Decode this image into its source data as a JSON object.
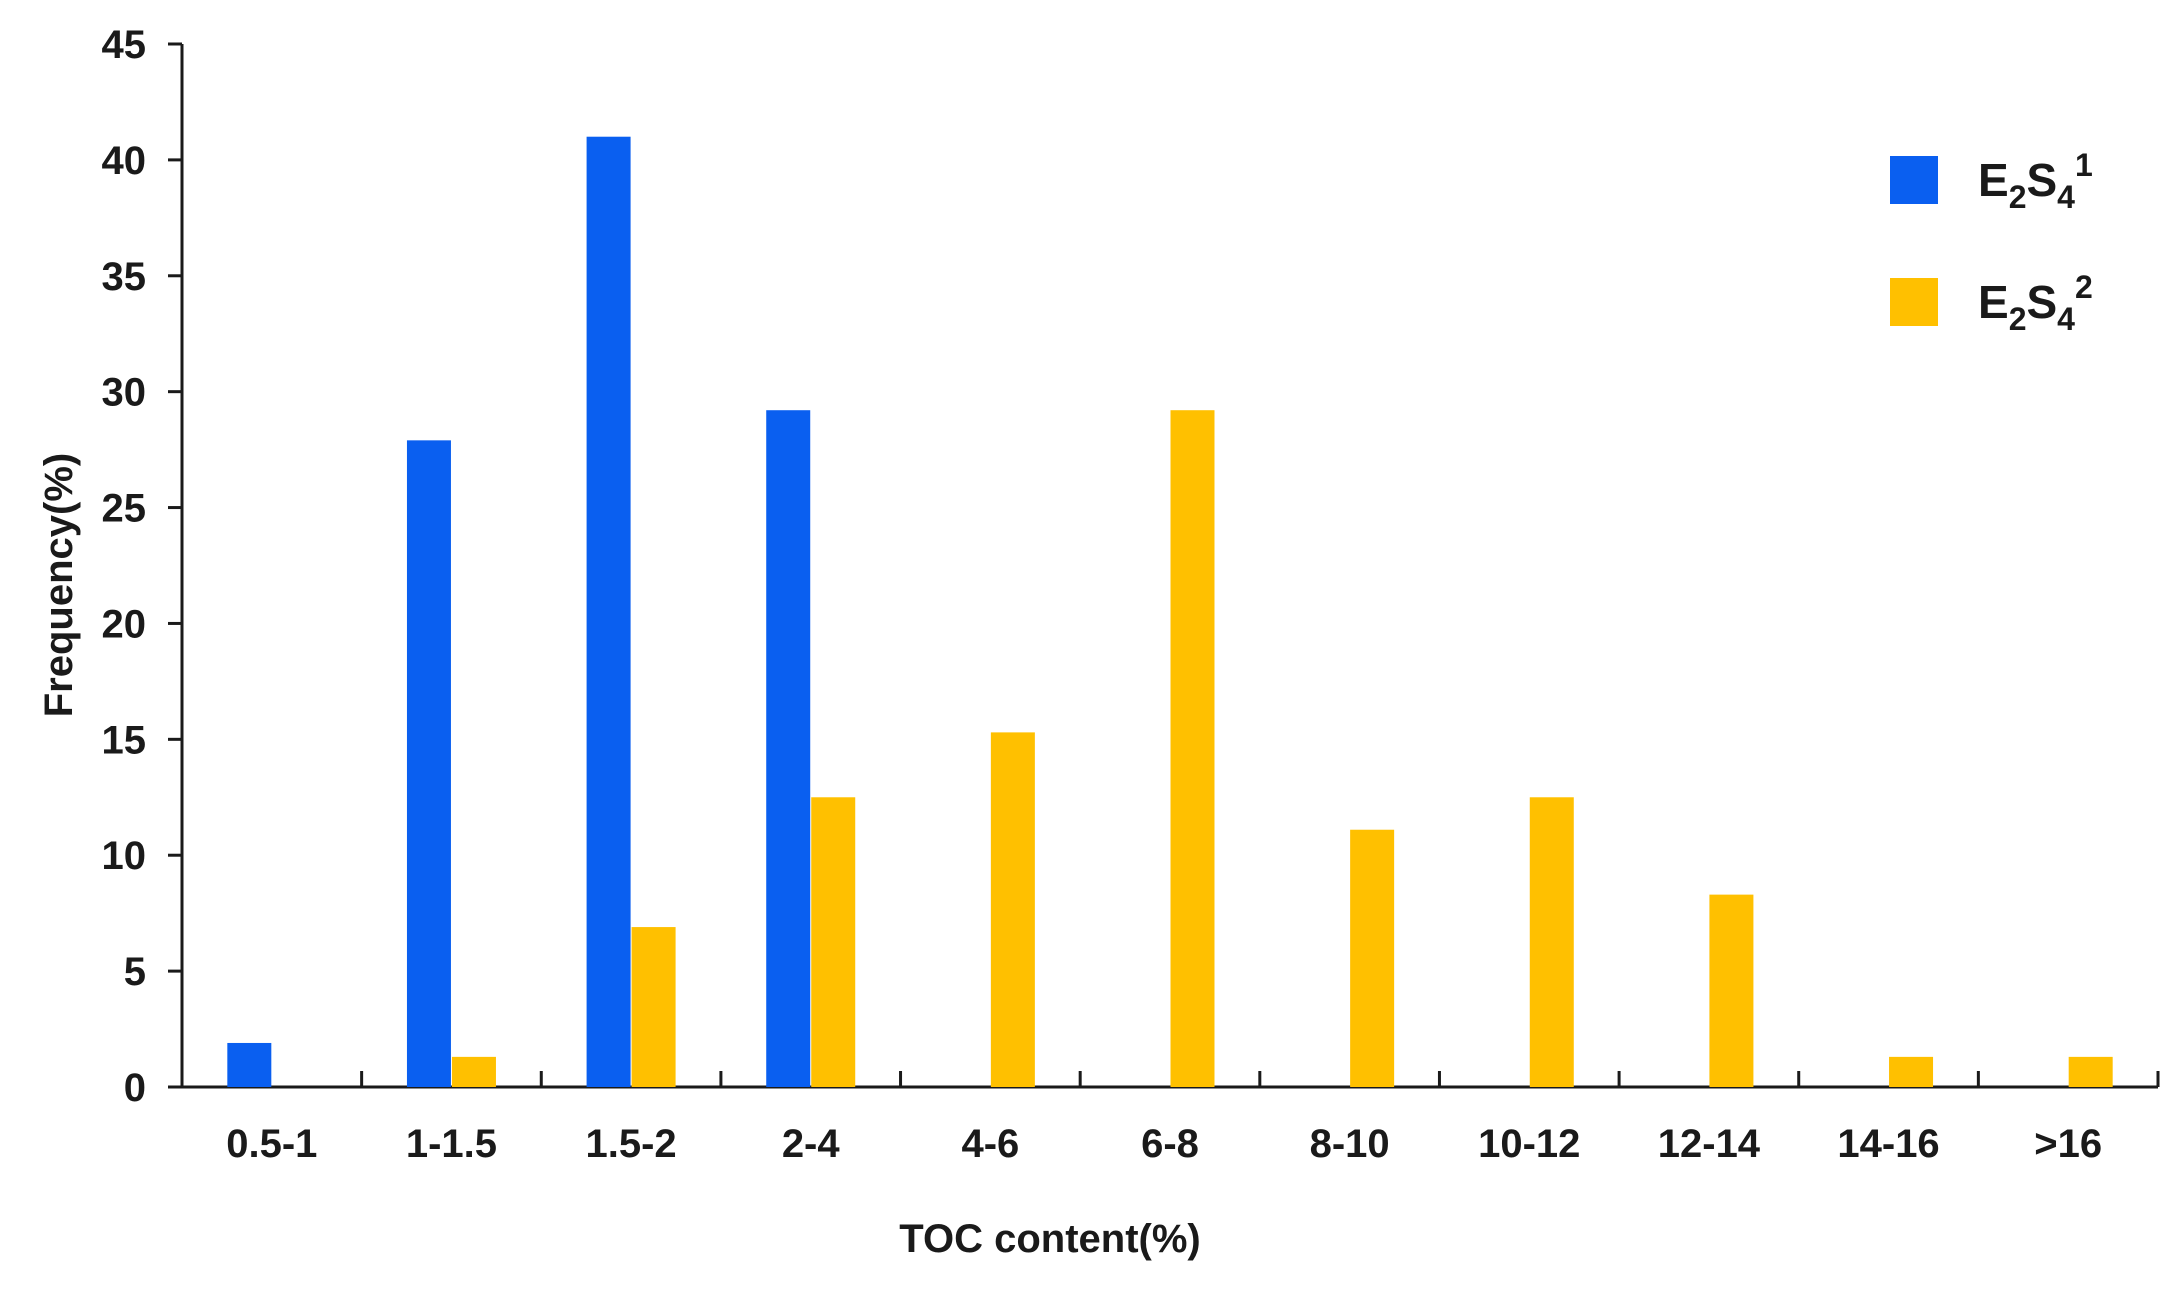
{
  "chart_data": {
    "type": "bar",
    "title": "",
    "xlabel": "TOC content(%)",
    "ylabel": "Frequency(%)",
    "ylim": [
      0,
      45
    ],
    "yticks": [
      0,
      5,
      10,
      15,
      20,
      25,
      30,
      35,
      40,
      45
    ],
    "grid": false,
    "legend_position": "top-right",
    "categories": [
      "0.5-1",
      "1-1.5",
      "1.5-2",
      "2-4",
      "4-6",
      "6-8",
      "8-10",
      "10-12",
      "12-14",
      "14-16",
      ">16"
    ],
    "series": [
      {
        "name": "E2S41",
        "legend": {
          "base": "E",
          "sub1": "2",
          "mid": "S",
          "sub2": "4",
          "sup": "1"
        },
        "color": "#0a5ff0",
        "values": [
          1.9,
          27.9,
          41.0,
          29.2,
          null,
          null,
          null,
          null,
          null,
          null,
          null
        ]
      },
      {
        "name": "E2S42",
        "legend": {
          "base": "E",
          "sub1": "2",
          "mid": "S",
          "sub2": "4",
          "sup": "2"
        },
        "color": "#ffc000",
        "values": [
          null,
          1.3,
          6.9,
          12.5,
          15.3,
          29.2,
          11.1,
          12.5,
          8.3,
          1.3,
          1.3
        ]
      }
    ]
  }
}
